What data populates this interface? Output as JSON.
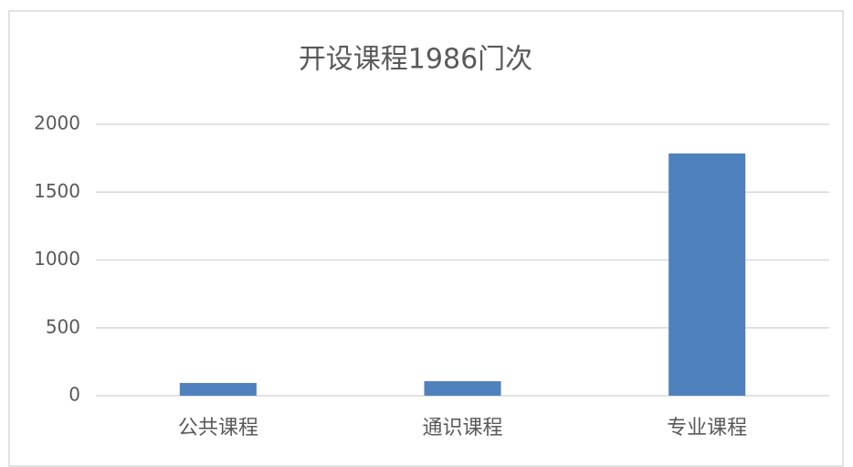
{
  "chart_data": {
    "type": "bar",
    "title": "开设课程1986门次",
    "categories": [
      "公共课程",
      "通识课程",
      "专业课程"
    ],
    "values": [
      94,
      107,
      1785
    ],
    "color": "#4f81bd",
    "ylim": [
      0,
      2000
    ],
    "yticks": [
      0,
      500,
      1000,
      1500,
      2000
    ],
    "grid": true
  }
}
